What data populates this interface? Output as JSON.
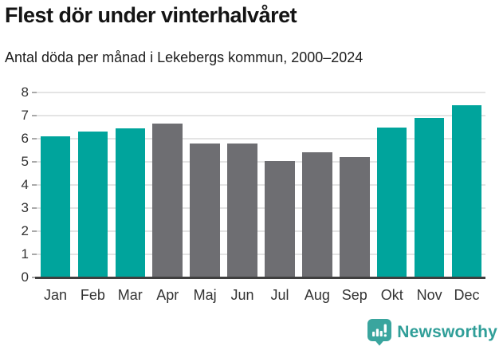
{
  "header": {
    "title": "Flest dör under vinterhalvåret",
    "subtitle": "Antal döda per månad i Lekebergs kommun, 2000–2024"
  },
  "chart_data": {
    "type": "bar",
    "title": "Flest dör under vinterhalvåret",
    "subtitle": "Antal döda per månad i Lekebergs kommun, 2000–2024",
    "categories": [
      "Jan",
      "Feb",
      "Mar",
      "Apr",
      "Maj",
      "Jun",
      "Jul",
      "Aug",
      "Sep",
      "Okt",
      "Nov",
      "Dec"
    ],
    "values": [
      6.1,
      6.3,
      6.45,
      6.65,
      5.8,
      5.8,
      5.05,
      5.4,
      5.2,
      6.5,
      6.9,
      7.45
    ],
    "highlighted_categories": [
      "Jan",
      "Feb",
      "Mar",
      "Okt",
      "Nov",
      "Dec"
    ],
    "xlabel": "",
    "ylabel": "",
    "ylim": [
      0,
      8
    ],
    "yticks": [
      0,
      1,
      2,
      3,
      4,
      5,
      6,
      7,
      8
    ],
    "grid": "horizontal",
    "legend": "none",
    "colors": {
      "highlight": "#00a49c",
      "default": "#6e6e72",
      "gridline": "#e4e4e4",
      "baseline": "#3f3f3f",
      "tick_label": "#333333"
    }
  },
  "footer": {
    "brand": "Newsworthy",
    "brand_color": "#2f9e98",
    "logo_icon": "bar-chart-speech-bubble-icon"
  }
}
